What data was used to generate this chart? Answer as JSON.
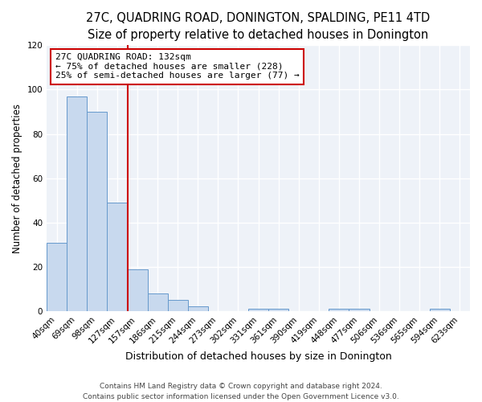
{
  "title": "27C, QUADRING ROAD, DONINGTON, SPALDING, PE11 4TD",
  "subtitle": "Size of property relative to detached houses in Donington",
  "xlabel": "Distribution of detached houses by size in Donington",
  "ylabel": "Number of detached properties",
  "bin_labels": [
    "40sqm",
    "69sqm",
    "98sqm",
    "127sqm",
    "157sqm",
    "186sqm",
    "215sqm",
    "244sqm",
    "273sqm",
    "302sqm",
    "331sqm",
    "361sqm",
    "390sqm",
    "419sqm",
    "448sqm",
    "477sqm",
    "506sqm",
    "536sqm",
    "565sqm",
    "594sqm",
    "623sqm"
  ],
  "bar_heights": [
    31,
    97,
    90,
    49,
    19,
    8,
    5,
    2,
    0,
    0,
    1,
    1,
    0,
    0,
    1,
    1,
    0,
    0,
    0,
    1,
    0
  ],
  "bar_color": "#c8d9ee",
  "bar_edge_color": "#6699cc",
  "vline_color": "#cc0000",
  "annotation_line1": "27C QUADRING ROAD: 132sqm",
  "annotation_line2": "← 75% of detached houses are smaller (228)",
  "annotation_line3": "25% of semi-detached houses are larger (77) →",
  "annotation_box_facecolor": "#ffffff",
  "annotation_box_edgecolor": "#cc0000",
  "ylim": [
    0,
    120
  ],
  "yticks": [
    0,
    20,
    40,
    60,
    80,
    100,
    120
  ],
  "footer1": "Contains HM Land Registry data © Crown copyright and database right 2024.",
  "footer2": "Contains public sector information licensed under the Open Government Licence v3.0.",
  "fig_facecolor": "#ffffff",
  "axes_facecolor": "#eef2f8",
  "title_fontsize": 10.5,
  "subtitle_fontsize": 9.5,
  "ylabel_fontsize": 8.5,
  "xlabel_fontsize": 9,
  "tick_fontsize": 7.5,
  "annot_fontsize": 8,
  "footer_fontsize": 6.5,
  "vline_bar_index": 3
}
